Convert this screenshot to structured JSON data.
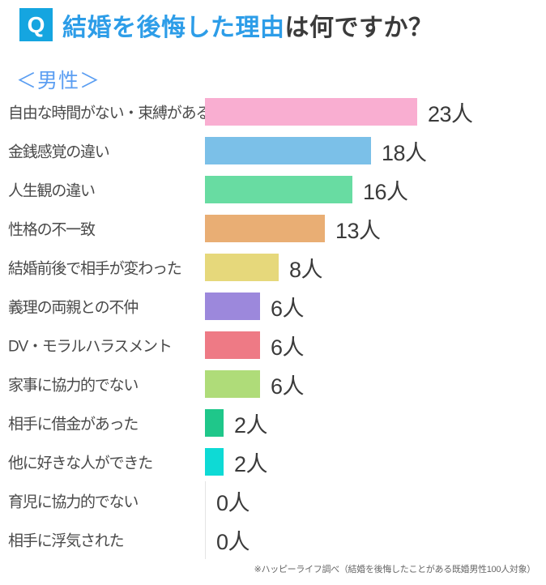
{
  "header": {
    "q_badge": "Q",
    "title_highlight": "結婚を後悔した理由",
    "title_rest": "は何ですか？",
    "subtitle": "＜男性＞"
  },
  "chart_data": {
    "type": "bar",
    "orientation": "horizontal",
    "title": "結婚を後悔した理由は何ですか？",
    "group": "男性",
    "unit": "人",
    "xlim": [
      0,
      23
    ],
    "grid": false,
    "legend": "none",
    "categories": [
      "自由な時間がない・束縛がある",
      "金銭感覚の違い",
      "人生観の違い",
      "性格の不一致",
      "結婚前後で相手が変わった",
      "義理の両親との不仲",
      "DV・モラルハラスメント",
      "家事に協力的でない",
      "相手に借金があった",
      "他に好きな人ができた",
      "育児に協力的でない",
      "相手に浮気された"
    ],
    "values": [
      23,
      18,
      16,
      13,
      8,
      6,
      6,
      6,
      2,
      2,
      0,
      0
    ],
    "value_labels": [
      "23人",
      "18人",
      "16人",
      "13人",
      "8人",
      "6人",
      "6人",
      "6人",
      "2人",
      "2人",
      "0人",
      "0人"
    ],
    "bar_colors": [
      "#F9AED1",
      "#7BC0E8",
      "#68DCA2",
      "#E9AE74",
      "#E6D87B",
      "#9C88DC",
      "#EE7A85",
      "#AFDC79",
      "#1FC78A",
      "#0EDAD5",
      "none",
      "none"
    ]
  },
  "footer": {
    "note": "※ハッピーライフ調べ（結婚を後悔したことがある既婚男性100人対象）"
  },
  "colors": {
    "badge_bg": "#15A5E0",
    "title_highlight": "#2D9DE8",
    "title_rest": "#3B3B3B",
    "subtitle_blue": "#5B9EF2",
    "label_gray": "#4A4A4A",
    "value_gray": "#3A3A3A",
    "zero_axis": "#E4E4E4"
  }
}
